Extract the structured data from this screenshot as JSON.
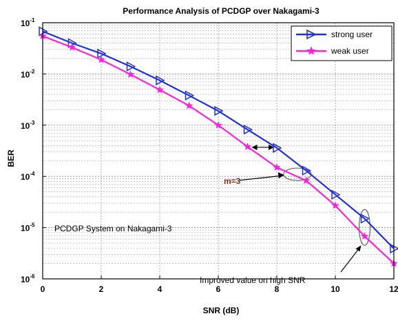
{
  "chart_data": {
    "type": "line",
    "title": "Performance Analysis of PCDGP over Nakagami-3",
    "xlabel": "SNR (dB)",
    "ylabel": "BER",
    "xlim": [
      0,
      12
    ],
    "ylim": [
      1e-06,
      0.1
    ],
    "yscale": "log",
    "grid": true,
    "legend_position": "top-right",
    "x_ticks": [
      "0",
      "2",
      "4",
      "6",
      "8",
      "10",
      "12"
    ],
    "y_ticks": [
      {
        "base": "10",
        "exp": "-6"
      },
      {
        "base": "10",
        "exp": "-5"
      },
      {
        "base": "10",
        "exp": "-4"
      },
      {
        "base": "10",
        "exp": "-3"
      },
      {
        "base": "10",
        "exp": "-2"
      },
      {
        "base": "10",
        "exp": "-1"
      }
    ],
    "x": [
      0,
      1,
      2,
      3,
      4,
      5,
      6,
      7,
      8,
      9,
      10,
      11,
      12
    ],
    "series": [
      {
        "name": "strong user",
        "color": "#1f2fe0",
        "marker": "triangle-right",
        "values": [
          0.068,
          0.04,
          0.025,
          0.014,
          0.0075,
          0.0038,
          0.0019,
          0.00082,
          0.00036,
          0.00013,
          4.4e-05,
          1.5e-05,
          3.9e-06
        ]
      },
      {
        "name": "weak user",
        "color": "#ff22dd",
        "marker": "star",
        "values": [
          0.055,
          0.033,
          0.019,
          0.0098,
          0.0049,
          0.0024,
          0.001,
          0.00038,
          0.00015,
          8.3e-05,
          2.7e-05,
          6.8e-06,
          2e-06
        ]
      }
    ],
    "annotations": {
      "m_label": "m=3",
      "system_note": "PCDGP System on Nakagami-3",
      "improved_note": "Improved value on high SNR"
    }
  }
}
